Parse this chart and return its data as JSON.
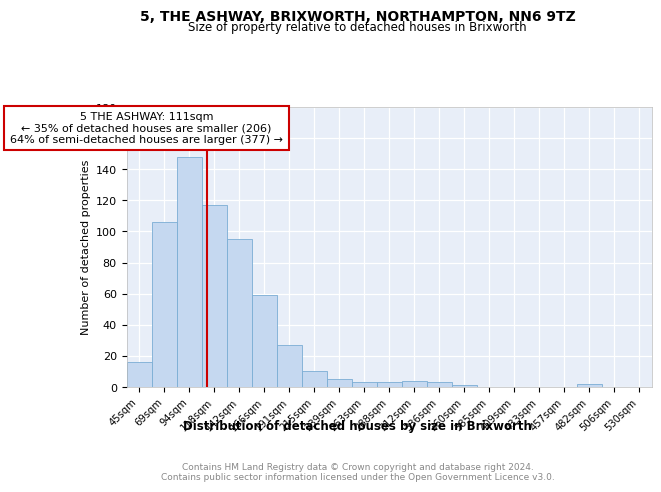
{
  "title": "5, THE ASHWAY, BRIXWORTH, NORTHAMPTON, NN6 9TZ",
  "subtitle": "Size of property relative to detached houses in Brixworth",
  "xlabel": "Distribution of detached houses by size in Brixworth",
  "ylabel": "Number of detached properties",
  "bar_labels": [
    "45sqm",
    "69sqm",
    "94sqm",
    "118sqm",
    "142sqm",
    "166sqm",
    "191sqm",
    "215sqm",
    "239sqm",
    "263sqm",
    "288sqm",
    "312sqm",
    "336sqm",
    "360sqm",
    "385sqm",
    "409sqm",
    "433sqm",
    "457sqm",
    "482sqm",
    "506sqm",
    "530sqm"
  ],
  "bar_values": [
    16,
    106,
    148,
    117,
    95,
    59,
    27,
    10,
    5,
    3,
    3,
    4,
    3,
    1,
    0,
    0,
    0,
    0,
    2,
    0,
    0
  ],
  "bar_color": "#c5d8f0",
  "bar_edge_color": "#7aadd4",
  "property_line_label": "5 THE ASHWAY: 111sqm",
  "annotation_line1": "← 35% of detached houses are smaller (206)",
  "annotation_line2": "64% of semi-detached houses are larger (377) →",
  "annotation_box_edgecolor": "#cc0000",
  "line_color": "#cc0000",
  "ylim": [
    0,
    180
  ],
  "yticks": [
    0,
    20,
    40,
    60,
    80,
    100,
    120,
    140,
    160,
    180
  ],
  "bg_color": "#e8eef8",
  "footer_line1": "Contains HM Land Registry data © Crown copyright and database right 2024.",
  "footer_line2": "Contains public sector information licensed under the Open Government Licence v3.0."
}
